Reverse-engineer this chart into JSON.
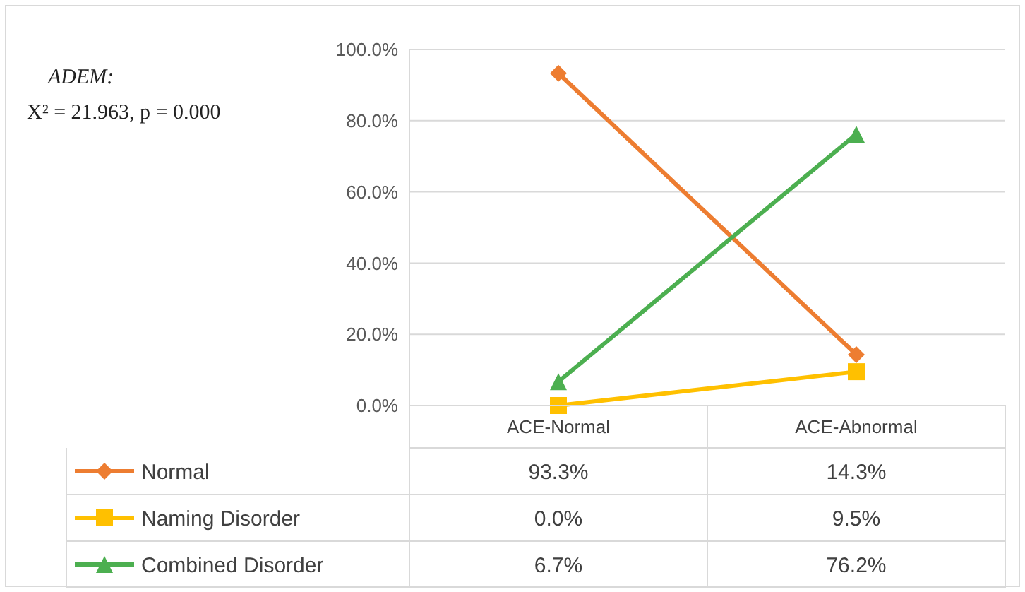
{
  "chart_data": {
    "type": "line",
    "categories": [
      "ACE-Normal",
      "ACE-Abnormal"
    ],
    "series": [
      {
        "name": "Normal",
        "color": "#ed7d31",
        "marker": "diamond",
        "values": [
          93.3,
          14.3
        ],
        "value_labels": [
          "93.3%",
          "14.3%"
        ]
      },
      {
        "name": "Naming Disorder",
        "color": "#ffc000",
        "marker": "square",
        "values": [
          0.0,
          9.5
        ],
        "value_labels": [
          "0.0%",
          "9.5%"
        ]
      },
      {
        "name": "Combined Disorder",
        "color": "#4caf50",
        "marker": "triangle",
        "values": [
          6.7,
          76.2
        ],
        "value_labels": [
          "6.7%",
          "76.2%"
        ]
      }
    ],
    "ylim": [
      0,
      100
    ],
    "yticks": [
      {
        "value": 0,
        "label": "0.0%"
      },
      {
        "value": 20,
        "label": "20.0%"
      },
      {
        "value": 40,
        "label": "40.0%"
      },
      {
        "value": 60,
        "label": "60.0%"
      },
      {
        "value": 80,
        "label": "80.0%"
      },
      {
        "value": 100,
        "label": "100.0%"
      }
    ],
    "grid": "y",
    "legend": "bottom",
    "annotations": [
      "ADEM:",
      "X² = 21.963, p = 0.000"
    ]
  }
}
